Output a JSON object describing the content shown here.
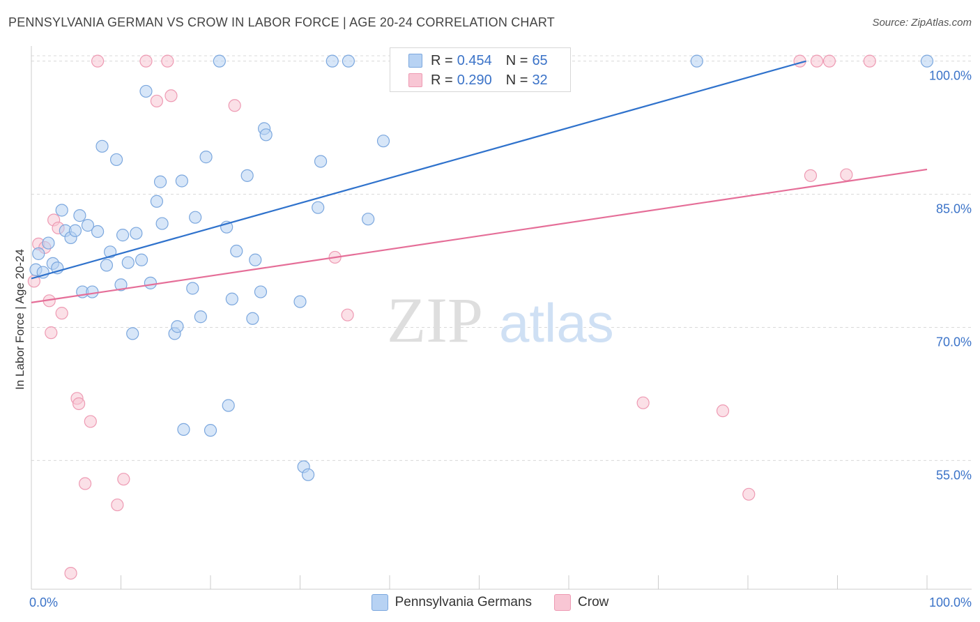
{
  "title": "PENNSYLVANIA GERMAN VS CROW IN LABOR FORCE | AGE 20-24 CORRELATION CHART",
  "source": "Source: ZipAtlas.com",
  "watermark": {
    "zip": "ZIP",
    "atlas": "atlas"
  },
  "legend_stats": {
    "blue": {
      "r_label": "R =",
      "r_value": "0.454",
      "n_label": "N =",
      "n_value": "65"
    },
    "pink": {
      "r_label": "R =",
      "r_value": "0.290",
      "n_label": "N =",
      "n_value": "32"
    }
  },
  "colors": {
    "blue_fill": "#b7d2f3",
    "blue_stroke": "#7ba7de",
    "blue_line": "#2f72cc",
    "pink_fill": "#f8c6d4",
    "pink_stroke": "#ee9ab3",
    "pink_line": "#e56e98",
    "grid": "#d8d8d8",
    "tick_text": "#3b73c8"
  },
  "chart_data": {
    "type": "scatter",
    "title": "PENNSYLVANIA GERMAN VS CROW IN LABOR FORCE | AGE 20-24 CORRELATION CHART",
    "xlabel": "",
    "ylabel": "In Labor Force | Age 20-24",
    "xlim": [
      0,
      100
    ],
    "ylim": [
      40.5,
      101.7
    ],
    "x_tick_labels": [
      "0.0%",
      "100.0%"
    ],
    "y_ticks": [
      55,
      70,
      85,
      100
    ],
    "y_tick_labels": [
      "55.0%",
      "70.0%",
      "85.0%",
      "100.0%"
    ],
    "grid": true,
    "legend_position": "top-center",
    "series": [
      {
        "name": "Pennsylvania Germans",
        "color": "#b7d2f3",
        "trend": {
          "x": [
            0,
            86.5
          ],
          "y": [
            75.5,
            100.0
          ]
        },
        "points": [
          [
            0.5,
            76.5
          ],
          [
            0.8,
            78.3
          ],
          [
            1.3,
            76.2
          ],
          [
            1.9,
            79.5
          ],
          [
            2.4,
            77.2
          ],
          [
            2.9,
            76.7
          ],
          [
            3.4,
            83.2
          ],
          [
            3.8,
            80.9
          ],
          [
            4.4,
            80.1
          ],
          [
            4.9,
            80.9
          ],
          [
            5.4,
            82.6
          ],
          [
            5.7,
            74.0
          ],
          [
            6.3,
            81.5
          ],
          [
            6.8,
            74.0
          ],
          [
            7.4,
            80.8
          ],
          [
            7.9,
            90.4
          ],
          [
            8.4,
            77.0
          ],
          [
            8.8,
            78.5
          ],
          [
            9.5,
            88.9
          ],
          [
            10.0,
            74.8
          ],
          [
            10.2,
            80.4
          ],
          [
            10.8,
            77.3
          ],
          [
            11.3,
            69.3
          ],
          [
            11.7,
            80.6
          ],
          [
            12.3,
            77.6
          ],
          [
            12.8,
            96.6
          ],
          [
            13.3,
            75.0
          ],
          [
            14.0,
            84.2
          ],
          [
            14.4,
            86.4
          ],
          [
            14.6,
            81.7
          ],
          [
            16.0,
            69.3
          ],
          [
            16.3,
            70.1
          ],
          [
            16.8,
            86.5
          ],
          [
            17.0,
            58.5
          ],
          [
            18.0,
            74.4
          ],
          [
            18.3,
            82.4
          ],
          [
            18.9,
            71.2
          ],
          [
            19.5,
            89.2
          ],
          [
            20.0,
            58.4
          ],
          [
            21.0,
            100.0
          ],
          [
            21.8,
            81.3
          ],
          [
            22.0,
            61.2
          ],
          [
            22.4,
            73.2
          ],
          [
            22.9,
            78.6
          ],
          [
            24.1,
            87.1
          ],
          [
            25.0,
            77.6
          ],
          [
            24.7,
            71.0
          ],
          [
            25.6,
            74.0
          ],
          [
            26.0,
            92.4
          ],
          [
            26.2,
            91.7
          ],
          [
            30.0,
            72.9
          ],
          [
            30.4,
            54.3
          ],
          [
            30.9,
            53.4
          ],
          [
            32.0,
            83.5
          ],
          [
            32.3,
            88.7
          ],
          [
            33.6,
            100.0
          ],
          [
            35.4,
            100.0
          ],
          [
            37.6,
            82.2
          ],
          [
            39.3,
            91.0
          ],
          [
            43.6,
            100.0
          ],
          [
            46.6,
            100.0
          ],
          [
            58.0,
            100.0
          ],
          [
            58.5,
            100.0
          ],
          [
            74.3,
            100.0
          ],
          [
            100.0,
            100.0
          ]
        ]
      },
      {
        "name": "Crow",
        "color": "#f8c6d4",
        "trend": {
          "x": [
            0,
            100
          ],
          "y": [
            72.8,
            87.8
          ]
        },
        "points": [
          [
            0.3,
            75.2
          ],
          [
            0.8,
            79.4
          ],
          [
            1.5,
            79.0
          ],
          [
            2.0,
            73.0
          ],
          [
            2.2,
            69.4
          ],
          [
            2.5,
            82.1
          ],
          [
            3.0,
            81.2
          ],
          [
            3.4,
            71.6
          ],
          [
            4.4,
            42.3
          ],
          [
            5.1,
            62.0
          ],
          [
            5.3,
            61.4
          ],
          [
            6.0,
            52.4
          ],
          [
            6.6,
            59.4
          ],
          [
            7.4,
            100.0
          ],
          [
            9.6,
            50.0
          ],
          [
            10.3,
            52.9
          ],
          [
            12.8,
            100.0
          ],
          [
            14.0,
            95.5
          ],
          [
            15.2,
            100.0
          ],
          [
            15.6,
            96.1
          ],
          [
            22.7,
            95.0
          ],
          [
            33.9,
            77.9
          ],
          [
            35.3,
            71.4
          ],
          [
            68.3,
            61.5
          ],
          [
            77.2,
            60.6
          ],
          [
            80.1,
            51.2
          ],
          [
            85.8,
            100.0
          ],
          [
            87.0,
            87.1
          ],
          [
            87.7,
            100.0
          ],
          [
            89.1,
            100.0
          ],
          [
            91.0,
            87.2
          ],
          [
            93.6,
            100.0
          ]
        ]
      }
    ]
  }
}
